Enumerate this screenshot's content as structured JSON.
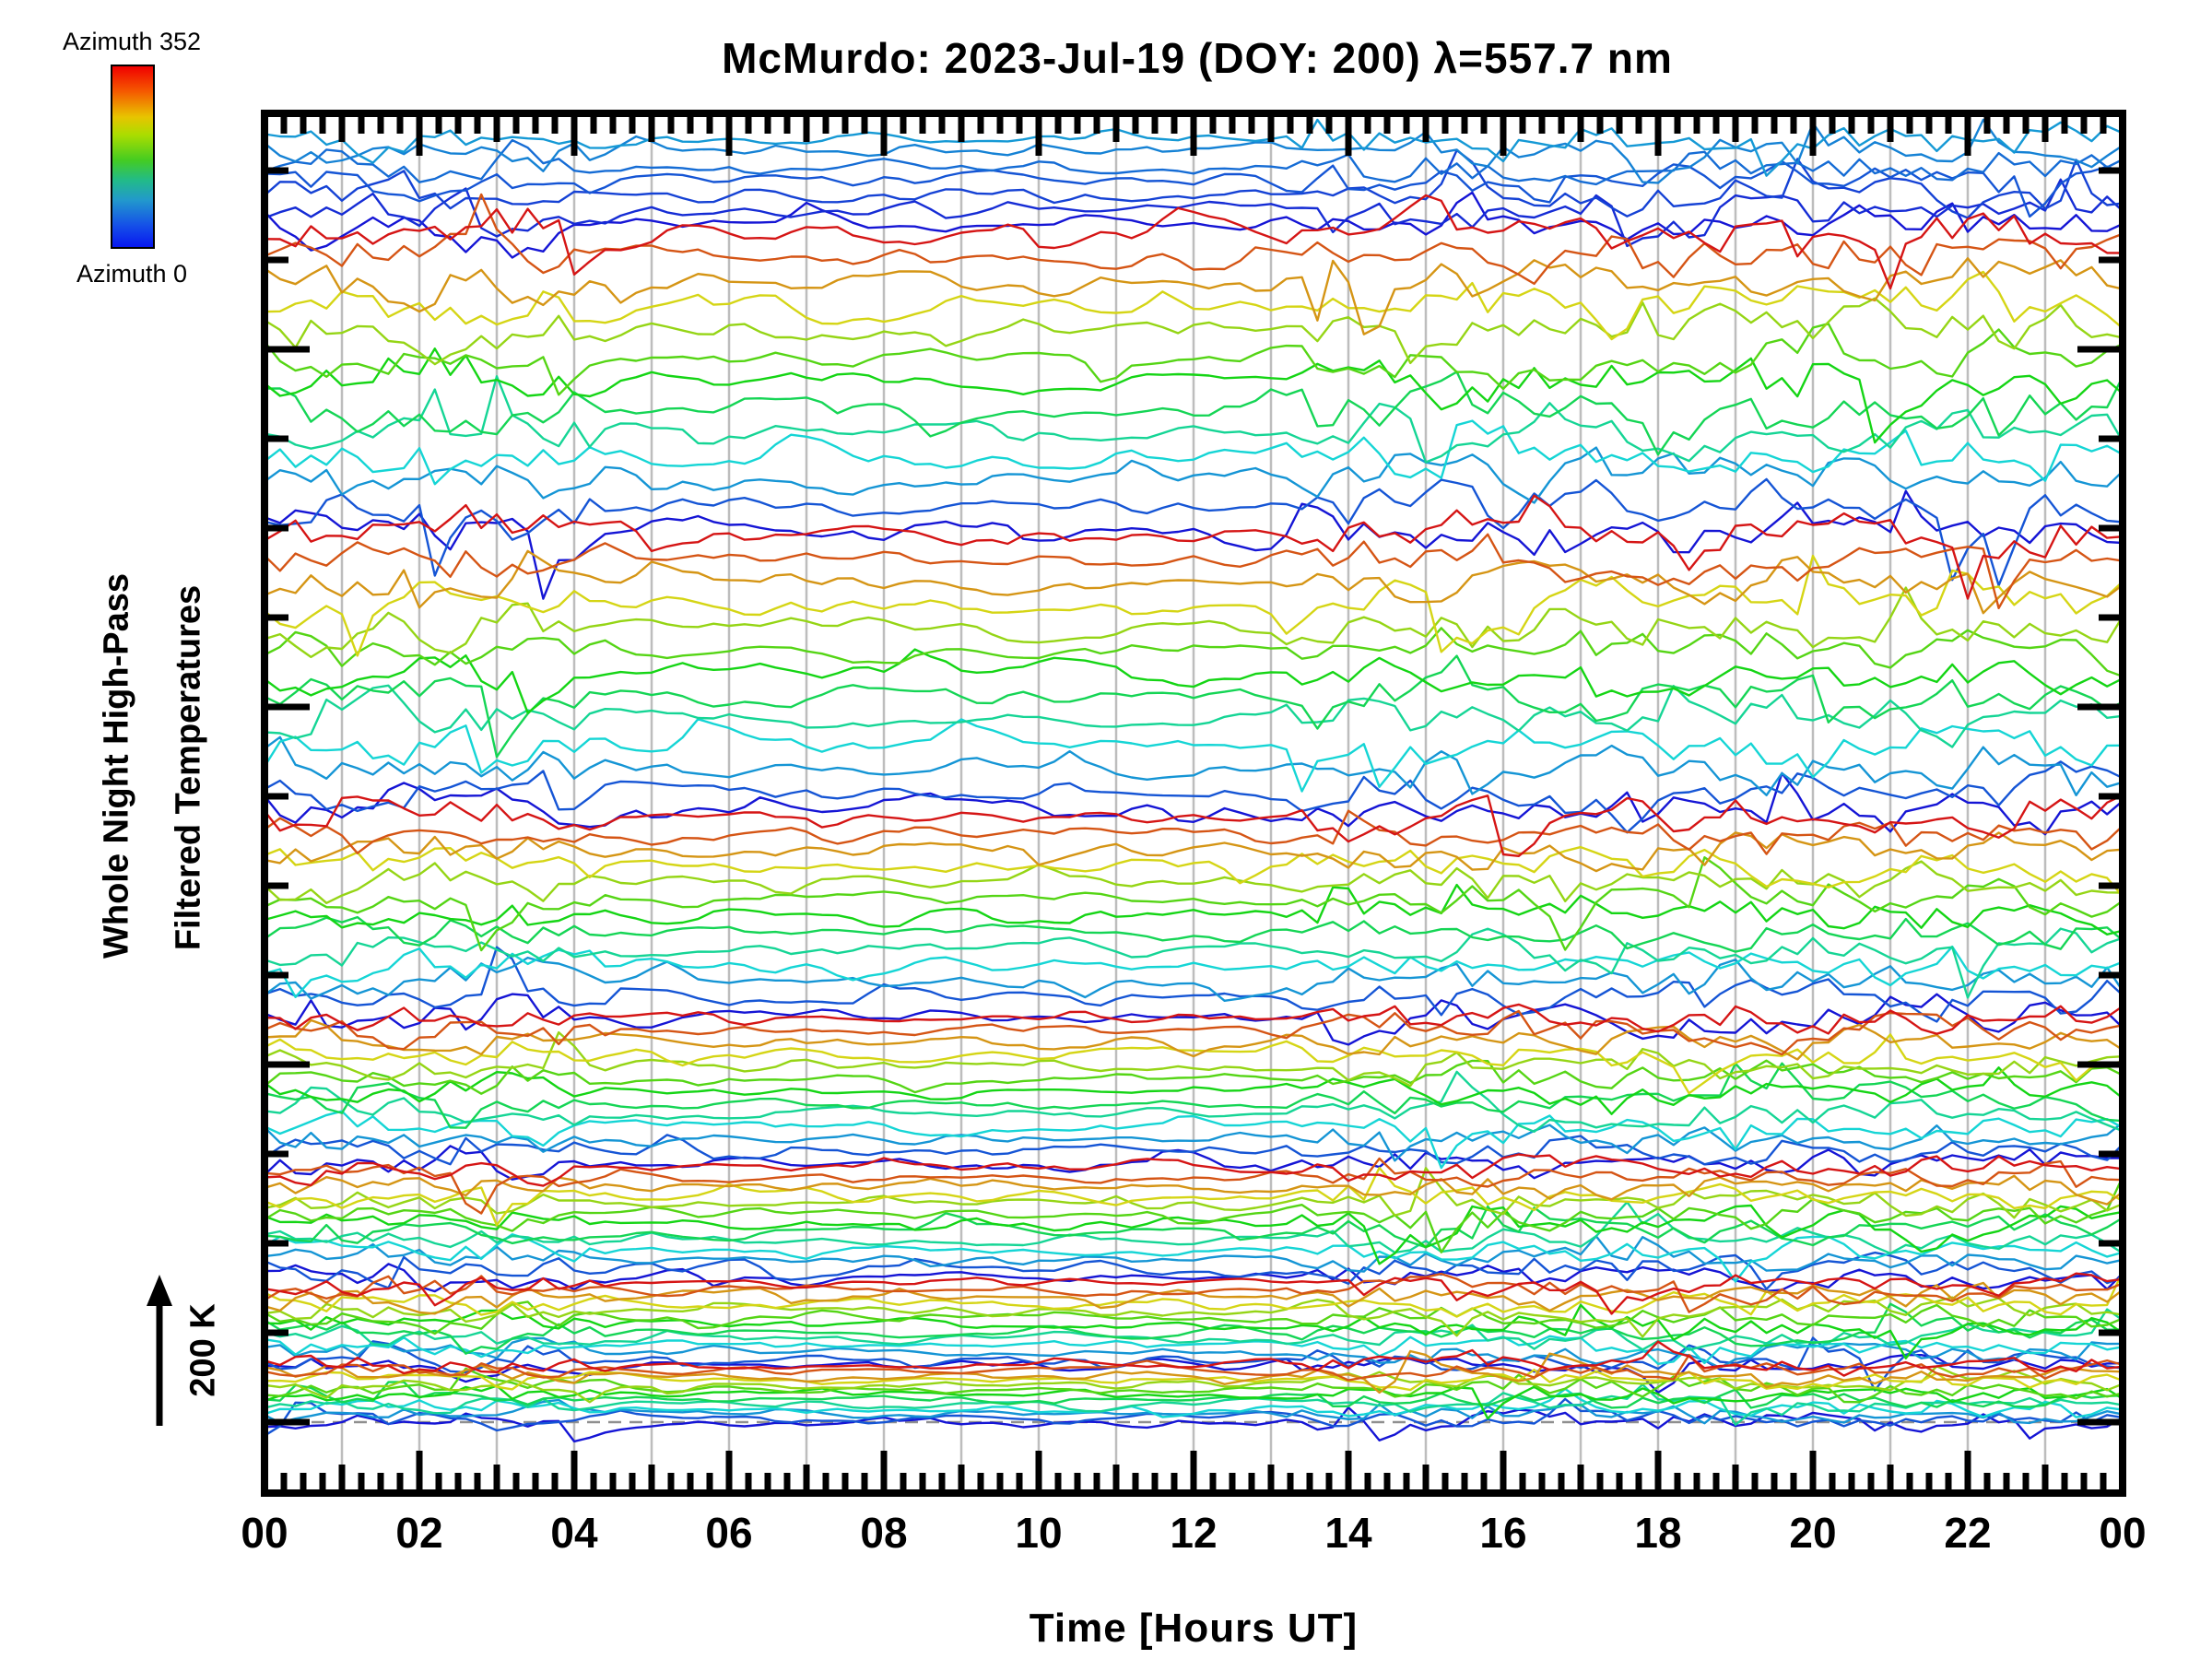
{
  "title": "McMurdo: 2023-Jul-19 (DOY: 200) λ=557.7 nm",
  "colorbar": {
    "top_label": "Azimuth 352",
    "bottom_label": "Azimuth 0",
    "gradient_stops": [
      "#f00000 0%",
      "#f55a00 14%",
      "#e8c400 28%",
      "#aadd00 38%",
      "#44cc22 52%",
      "#22bb88 63%",
      "#2299cc 74%",
      "#1550e8 88%",
      "#0818f0 100%"
    ]
  },
  "y_axis_label": {
    "line1": "Whole Night High-Pass",
    "line2": "Filtered Temperatures"
  },
  "x_axis": {
    "label": "Time [Hours UT]"
  },
  "scale_arrow": {
    "label": "200 K"
  },
  "colors": {
    "frame": "#000000",
    "gridline": "#bdbdbd",
    "reference_dash": "#8f8f8f",
    "background": "#ffffff"
  },
  "chart_data": {
    "type": "line",
    "title": "McMurdo: 2023-Jul-19 (DOY: 200) λ=557.7 nm",
    "xlabel": "Time [Hours UT]",
    "ylabel_lines": [
      "Whole Night High-Pass",
      "Filtered Temperatures"
    ],
    "x_range_hours": [
      0,
      24
    ],
    "x_tick_labels": [
      "00",
      "02",
      "04",
      "06",
      "08",
      "10",
      "12",
      "14",
      "16",
      "18",
      "20",
      "22",
      "00"
    ],
    "x_minor_tick_minutes": 15,
    "grid": "vertical-hourly",
    "legend_position": "top-left-colorbar",
    "azimuth_color_range": {
      "min": 0,
      "max": 352,
      "min_color": "#0818f0",
      "max_color": "#f00000"
    },
    "scale_bar_label": "200 K",
    "points_per_trace": 121,
    "trace_cycles": [
      {
        "top_y": 150,
        "step_y": 15.5,
        "amplitude": 16,
        "azimuths": [
          60,
          50,
          40,
          30,
          20,
          10,
          0
        ]
      },
      {
        "top_y": 252,
        "step_y": 27.0,
        "amplitude": 22,
        "azimuths": [
          352,
          323,
          294,
          264,
          235,
          206,
          176,
          147,
          117,
          88,
          59,
          29,
          0
        ]
      },
      {
        "top_y": 582,
        "step_y": 25.0,
        "amplitude": 20,
        "azimuths": [
          352,
          323,
          294,
          264,
          235,
          206,
          176,
          147,
          117,
          88,
          59,
          29,
          0
        ]
      },
      {
        "top_y": 887,
        "step_y": 17.8,
        "amplitude": 17,
        "azimuths": [
          352,
          323,
          294,
          264,
          235,
          206,
          176,
          147,
          117,
          88,
          59,
          29,
          0
        ]
      },
      {
        "top_y": 1105,
        "step_y": 13.0,
        "amplitude": 14,
        "azimuths": [
          352,
          323,
          294,
          264,
          235,
          206,
          176,
          147,
          117,
          88,
          59,
          29,
          0
        ]
      },
      {
        "top_y": 1267,
        "step_y": 10.0,
        "amplitude": 12.5,
        "azimuths": [
          352,
          323,
          294,
          264,
          235,
          206,
          176,
          147,
          117,
          88,
          59,
          29,
          0
        ]
      },
      {
        "top_y": 1392,
        "step_y": 7.5,
        "amplitude": 11,
        "azimuths": [
          352,
          323,
          294,
          264,
          235,
          206,
          176,
          147,
          117,
          88,
          59,
          29,
          0
        ]
      },
      {
        "top_y": 1481,
        "step_y": 5.3,
        "amplitude": 9,
        "azimuths": [
          352,
          323,
          294,
          264,
          235,
          206,
          176,
          147,
          117,
          88,
          59,
          29,
          0
        ]
      }
    ],
    "reference_line_y": 1543,
    "geometry": {
      "plot_left": 287,
      "plot_top": 123,
      "plot_right": 2303,
      "plot_bottom": 1620
    },
    "y_ticks": {
      "start_y": 185,
      "step_y": 97,
      "count": 15,
      "major_every": 4,
      "major_start_index": 2
    }
  }
}
